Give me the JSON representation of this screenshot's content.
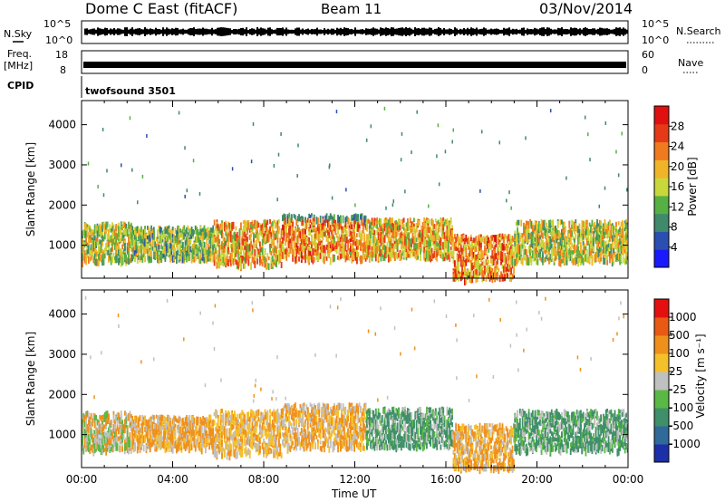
{
  "header": {
    "station": "Dome C East (fitACF)",
    "beam": "Beam 11",
    "date": "03/Nov/2014"
  },
  "top_panels": {
    "nsky_label": "N.Sky",
    "nsky_ticks": [
      "10^5",
      "10^0"
    ],
    "nsearch_label": "N.Search",
    "nsearch_ticks": [
      "10^5",
      "10^0"
    ],
    "freq_label": "Freq.",
    "freq_unit": "[MHz]",
    "freq_ticks": [
      "18",
      "8"
    ],
    "nave_label": "Nave",
    "nave_ticks": [
      "60",
      "0"
    ],
    "cpid_label": "CPID",
    "cpid_value": "twofsound 3501"
  },
  "chart_data": [
    {
      "type": "heatmap",
      "name": "power-panel",
      "ylabel": "Slant Range [km]",
      "ylim": [
        180,
        4600
      ],
      "yticks": [
        1000,
        2000,
        3000,
        4000
      ],
      "xlim": [
        0,
        24
      ],
      "colorbar": {
        "label": "Power [dB]",
        "range": [
          0,
          32
        ],
        "ticks": [
          "4",
          "8",
          "12",
          "16",
          "20",
          "24",
          "28"
        ],
        "colors": [
          "#1a1aff",
          "#2a4fb0",
          "#3f8a6a",
          "#56b043",
          "#c8d83a",
          "#f0b428",
          "#f07a1e",
          "#e63a17",
          "#e01010"
        ]
      },
      "scatter_bands": [
        {
          "t0": 0,
          "t1": 2.2,
          "r0": 650,
          "r1": 1600,
          "level": 16
        },
        {
          "t0": 2.2,
          "t1": 5.8,
          "r0": 700,
          "r1": 1500,
          "level": 14
        },
        {
          "t0": 5.8,
          "t1": 8.8,
          "r0": 550,
          "r1": 1650,
          "level": 20
        },
        {
          "t0": 8.8,
          "t1": 12.5,
          "r0": 700,
          "r1": 1800,
          "level": 22
        },
        {
          "t0": 12.5,
          "t1": 16.3,
          "r0": 750,
          "r1": 1700,
          "level": 20
        },
        {
          "t0": 16.3,
          "t1": 19,
          "r0": 200,
          "r1": 1300,
          "level": 22
        },
        {
          "t0": 19,
          "t1": 24,
          "r0": 650,
          "r1": 1650,
          "level": 16
        }
      ]
    },
    {
      "type": "heatmap",
      "name": "velocity-panel",
      "ylabel": "Slant Range [km]",
      "ylim": [
        180,
        4600
      ],
      "yticks": [
        1000,
        2000,
        3000,
        4000
      ],
      "xlim": [
        0,
        24
      ],
      "xticks": [
        "00:00",
        "04:00",
        "08:00",
        "12:00",
        "16:00",
        "20:00",
        "00:00"
      ],
      "xlabel": "Time UT",
      "colorbar": {
        "label": "Velocity [m s⁻¹]",
        "ticks": [
          "1000",
          "500",
          "100",
          "25",
          "-25",
          "-100",
          "-500",
          "-1000"
        ],
        "colors": [
          "#1c2fa8",
          "#2f6a9a",
          "#3e8f6a",
          "#5ab845",
          "#c0c0c0",
          "#f5c12a",
          "#f0901c",
          "#e85a14",
          "#e41010"
        ]
      },
      "scatter_bands": [
        {
          "t0": 0,
          "t1": 2.2,
          "r0": 650,
          "r1": 1600,
          "class": "mixed-green-orange"
        },
        {
          "t0": 2.2,
          "t1": 5.8,
          "r0": 700,
          "r1": 1500,
          "class": "orange"
        },
        {
          "t0": 5.8,
          "t1": 8.8,
          "r0": 550,
          "r1": 1650,
          "class": "orange-gray"
        },
        {
          "t0": 8.8,
          "t1": 12.5,
          "r0": 700,
          "r1": 1800,
          "class": "orange"
        },
        {
          "t0": 12.5,
          "t1": 16.3,
          "r0": 750,
          "r1": 1700,
          "class": "green"
        },
        {
          "t0": 16.3,
          "t1": 19,
          "r0": 200,
          "r1": 1300,
          "class": "orange"
        },
        {
          "t0": 19,
          "t1": 24,
          "r0": 650,
          "r1": 1650,
          "class": "green"
        }
      ]
    }
  ]
}
